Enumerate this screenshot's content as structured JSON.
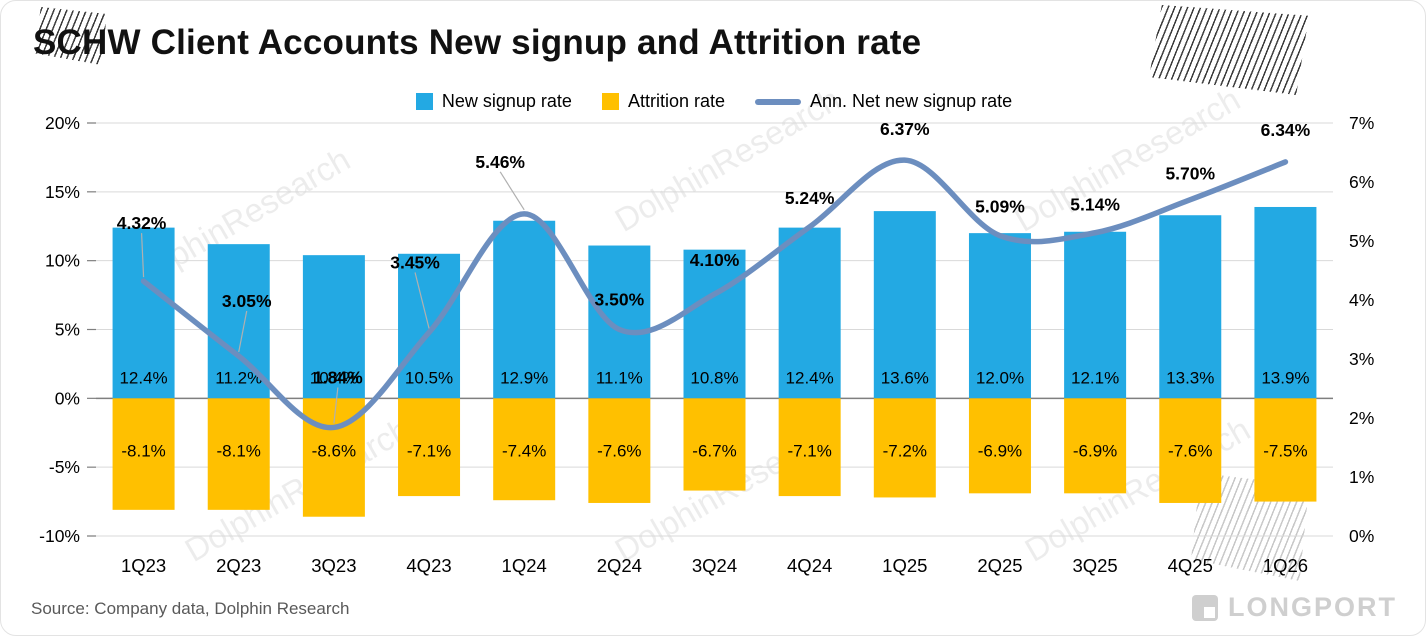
{
  "title": "SCHW Client Accounts New signup and Attrition rate",
  "source": "Source:  Company data, Dolphin Research",
  "watermark": "DolphinResearch",
  "brand": "LONGPORT",
  "legend": [
    {
      "label": "New signup rate",
      "color": "#23A9E3"
    },
    {
      "label": "Attrition rate",
      "color": "#FFC000"
    },
    {
      "label": "Ann. Net new signup rate",
      "color": "#6C8EBF"
    }
  ],
  "chart_data": {
    "type": "bar",
    "subtype": "bar+line-combo",
    "title": "SCHW Client Accounts New signup and Attrition rate",
    "categories": [
      "1Q23",
      "2Q23",
      "3Q23",
      "4Q23",
      "1Q24",
      "2Q24",
      "3Q24",
      "4Q24",
      "1Q25",
      "2Q25",
      "3Q25",
      "4Q25",
      "1Q26"
    ],
    "series": [
      {
        "name": "New signup rate",
        "type": "bar",
        "axis": "left",
        "color": "#23A9E3",
        "values": [
          12.4,
          11.2,
          10.4,
          10.5,
          12.9,
          11.1,
          10.8,
          12.4,
          13.6,
          12.0,
          12.1,
          13.3,
          13.9
        ]
      },
      {
        "name": "Attrition rate",
        "type": "bar",
        "axis": "left",
        "color": "#FFC000",
        "values": [
          -8.1,
          -8.1,
          -8.6,
          -7.1,
          -7.4,
          -7.6,
          -6.7,
          -7.1,
          -7.2,
          -6.9,
          -6.9,
          -7.6,
          -7.5
        ]
      },
      {
        "name": "Ann. Net new signup rate",
        "type": "line",
        "axis": "right",
        "color": "#6C8EBF",
        "values": [
          4.32,
          3.05,
          1.84,
          3.45,
          5.46,
          3.5,
          4.1,
          5.24,
          6.37,
          5.09,
          5.14,
          5.7,
          6.34
        ]
      }
    ],
    "left_axis": {
      "min": -10,
      "max": 20,
      "tick_values": [
        20,
        15,
        10,
        5,
        0,
        -5,
        -10
      ]
    },
    "right_axis": {
      "min": 0,
      "max": 7,
      "tick_values": [
        7,
        6,
        5,
        4,
        3,
        2,
        1,
        0
      ]
    },
    "grid": true,
    "legend_position": "top",
    "grid_color": "#d9d9d9",
    "axis_color": "#7f7f7f",
    "label_color": "#000000",
    "leader_color": "#b0b0b0"
  }
}
